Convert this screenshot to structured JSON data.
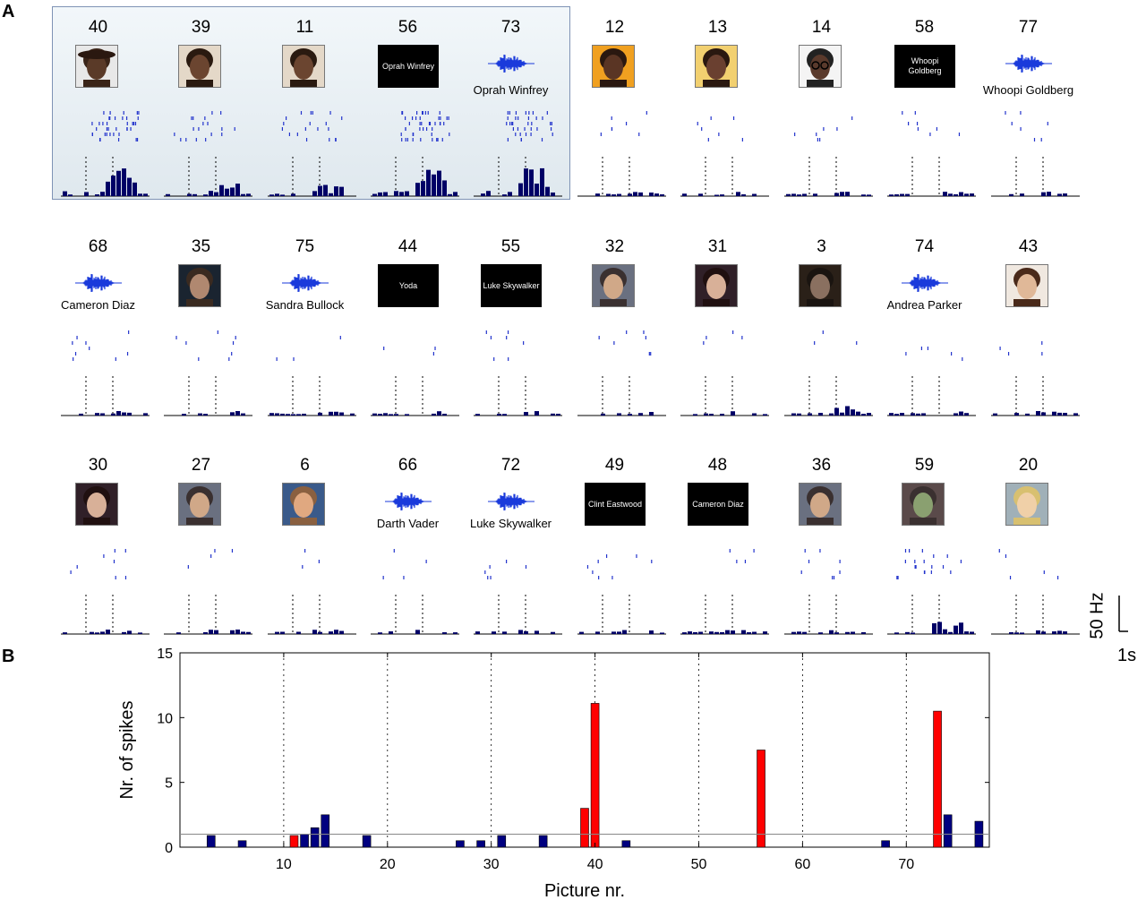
{
  "panels": {
    "a": "A",
    "b": "B"
  },
  "colors": {
    "raster": "#2233cc",
    "hist": "#000066",
    "red": "#ff0000",
    "navy": "#000080",
    "highlight": "#e6eef3"
  },
  "grid": [
    {
      "num": "40",
      "kind": "face",
      "face": "woman-hat"
    },
    {
      "num": "39",
      "kind": "face",
      "face": "woman"
    },
    {
      "num": "11",
      "kind": "face",
      "face": "woman"
    },
    {
      "num": "56",
      "kind": "name",
      "text": "Oprah Winfrey"
    },
    {
      "num": "73",
      "kind": "sound",
      "label": "Oprah Winfrey"
    },
    {
      "num": "12",
      "kind": "face",
      "face": "woman-orange"
    },
    {
      "num": "13",
      "kind": "face",
      "face": "woman-smile"
    },
    {
      "num": "14",
      "kind": "face",
      "face": "woman-glasses"
    },
    {
      "num": "58",
      "kind": "name",
      "text": "Whoopi Goldberg"
    },
    {
      "num": "77",
      "kind": "sound",
      "label": "Whoopi Goldberg"
    },
    {
      "num": "68",
      "kind": "sound",
      "label": "Cameron Diaz"
    },
    {
      "num": "35",
      "kind": "face",
      "face": "man-dark"
    },
    {
      "num": "75",
      "kind": "sound",
      "label": "Sandra Bullock"
    },
    {
      "num": "44",
      "kind": "name",
      "text": "Yoda"
    },
    {
      "num": "55",
      "kind": "name",
      "text": "Luke Skywalker"
    },
    {
      "num": "32",
      "kind": "face",
      "face": "man-suit"
    },
    {
      "num": "31",
      "kind": "face",
      "face": "woman-dark"
    },
    {
      "num": "3",
      "kind": "face",
      "face": "vader"
    },
    {
      "num": "74",
      "kind": "sound",
      "label": "Andrea Parker"
    },
    {
      "num": "43",
      "kind": "face",
      "face": "woman-fair"
    },
    {
      "num": "30",
      "kind": "face",
      "face": "woman-dark"
    },
    {
      "num": "27",
      "kind": "face",
      "face": "man-suit"
    },
    {
      "num": "6",
      "kind": "face",
      "face": "man-smile"
    },
    {
      "num": "66",
      "kind": "sound",
      "label": "Darth Vader"
    },
    {
      "num": "72",
      "kind": "sound",
      "label": "Luke Skywalker"
    },
    {
      "num": "49",
      "kind": "name",
      "text": "Clint Eastwood"
    },
    {
      "num": "48",
      "kind": "name",
      "text": "Cameron Diaz"
    },
    {
      "num": "36",
      "kind": "face",
      "face": "man-suit"
    },
    {
      "num": "59",
      "kind": "face",
      "face": "yoda"
    },
    {
      "num": "20",
      "kind": "face",
      "face": "woman-blonde"
    }
  ],
  "scale": {
    "hz": "50 Hz",
    "time": "1s"
  },
  "chart_data": {
    "type": "bar",
    "xlabel": "Picture nr.",
    "ylabel": "Nr. of spikes",
    "xlim": [
      0,
      78
    ],
    "ylim": [
      0,
      15
    ],
    "xticks": [
      10,
      20,
      30,
      40,
      50,
      60,
      70
    ],
    "yticks": [
      0,
      5,
      10,
      15
    ],
    "threshold": 1.0,
    "grid_x": [
      10,
      20,
      30,
      40,
      50,
      60,
      70
    ],
    "bars": [
      {
        "x": 3,
        "value": 0.9,
        "responsive": false
      },
      {
        "x": 6,
        "value": 0.5,
        "responsive": false
      },
      {
        "x": 11,
        "value": 0.9,
        "responsive": true
      },
      {
        "x": 12,
        "value": 1.0,
        "responsive": false
      },
      {
        "x": 13,
        "value": 1.5,
        "responsive": false
      },
      {
        "x": 14,
        "value": 2.5,
        "responsive": false
      },
      {
        "x": 18,
        "value": 0.9,
        "responsive": false
      },
      {
        "x": 27,
        "value": 0.5,
        "responsive": false
      },
      {
        "x": 29,
        "value": 0.5,
        "responsive": false
      },
      {
        "x": 31,
        "value": 0.9,
        "responsive": false
      },
      {
        "x": 35,
        "value": 0.9,
        "responsive": false
      },
      {
        "x": 39,
        "value": 3.0,
        "responsive": true
      },
      {
        "x": 40,
        "value": 11.1,
        "responsive": true
      },
      {
        "x": 43,
        "value": 0.5,
        "responsive": false
      },
      {
        "x": 56,
        "value": 7.5,
        "responsive": true
      },
      {
        "x": 68,
        "value": 0.5,
        "responsive": false
      },
      {
        "x": 73,
        "value": 10.5,
        "responsive": true
      },
      {
        "x": 74,
        "value": 2.5,
        "responsive": false
      },
      {
        "x": 77,
        "value": 2.0,
        "responsive": false
      }
    ]
  }
}
